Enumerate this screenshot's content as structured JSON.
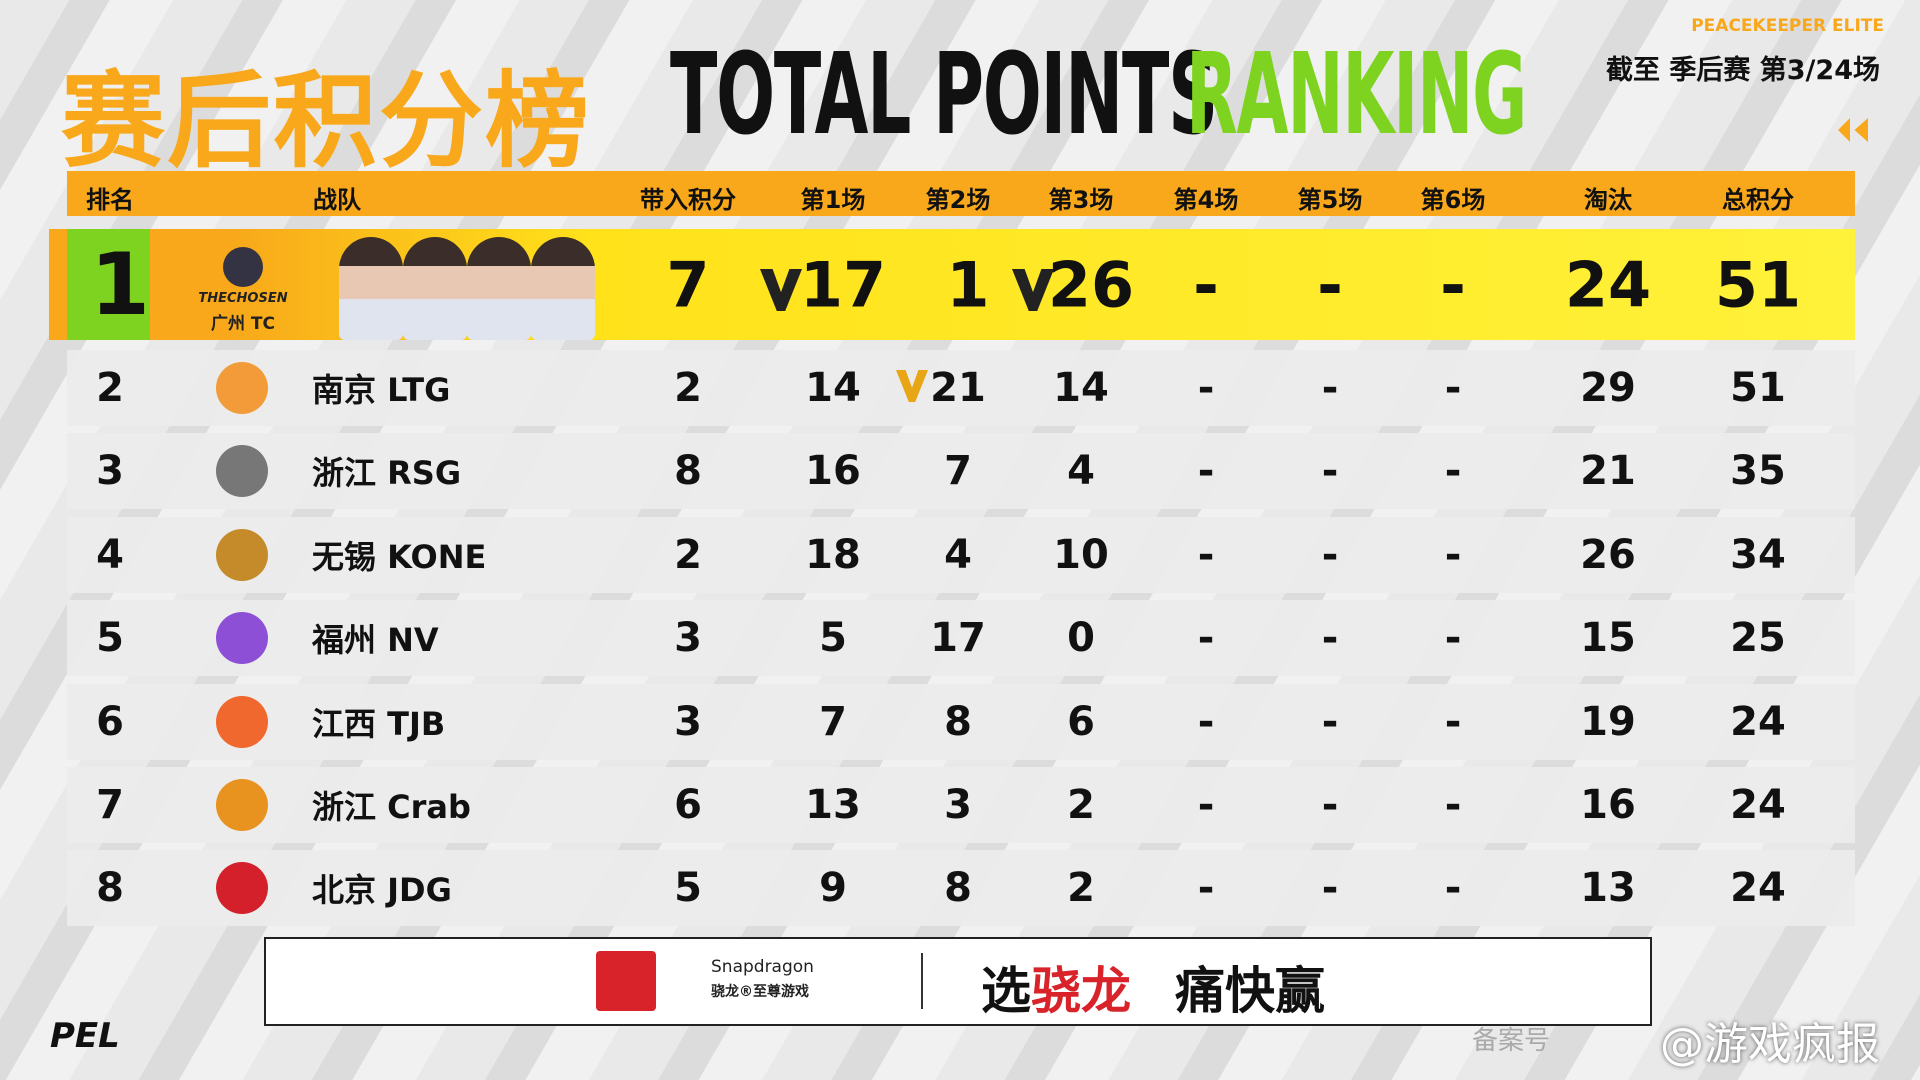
{
  "header": {
    "title_cn": "赛后积分榜",
    "title_en_1": "TOTAL POINTS",
    "title_en_2": "RANKING",
    "brand": "PEACEKEEPER ELITE",
    "status": "截至 季后赛 第3/24场"
  },
  "table": {
    "columns": [
      "排名",
      "战队",
      "带入积分",
      "第1场",
      "第2场",
      "第3场",
      "第4场",
      "第5场",
      "第6场",
      "淘汰",
      "总积分"
    ],
    "leader_logo_text": "THECHOSEN",
    "rows": [
      {
        "rank": 1,
        "team": "广州 TC",
        "carry": 7,
        "games": [
          17,
          1,
          26,
          "-",
          "-",
          "-"
        ],
        "elim": 24,
        "total": 51
      },
      {
        "rank": 2,
        "team": "南京 LTG",
        "carry": 2,
        "games": [
          14,
          21,
          14,
          "-",
          "-",
          "-"
        ],
        "elim": 29,
        "total": 51
      },
      {
        "rank": 3,
        "team": "浙江 RSG",
        "carry": 8,
        "games": [
          16,
          7,
          4,
          "-",
          "-",
          "-"
        ],
        "elim": 21,
        "total": 35
      },
      {
        "rank": 4,
        "team": "无锡 KONE",
        "carry": 2,
        "games": [
          18,
          4,
          10,
          "-",
          "-",
          "-"
        ],
        "elim": 26,
        "total": 34
      },
      {
        "rank": 5,
        "team": "福州 NV",
        "carry": 3,
        "games": [
          5,
          17,
          0,
          "-",
          "-",
          "-"
        ],
        "elim": 15,
        "total": 25
      },
      {
        "rank": 6,
        "team": "江西 TJB",
        "carry": 3,
        "games": [
          7,
          8,
          6,
          "-",
          "-",
          "-"
        ],
        "elim": 19,
        "total": 24
      },
      {
        "rank": 7,
        "team": "浙江 Crab",
        "carry": 6,
        "games": [
          13,
          3,
          2,
          "-",
          "-",
          "-"
        ],
        "elim": 16,
        "total": 24
      },
      {
        "rank": 8,
        "team": "北京 JDG",
        "carry": 5,
        "games": [
          9,
          8,
          2,
          "-",
          "-",
          "-"
        ],
        "elim": 13,
        "total": 24
      }
    ]
  },
  "sponsor": {
    "brand": "Snapdragon",
    "sub": "骁龙®至尊游戏",
    "slogan_1": "选",
    "slogan_2": "骁龙",
    "slogan_3": "痛快赢"
  },
  "footer": {
    "logo": "PEL",
    "record": "备案号",
    "watermark": "@游戏疯报"
  }
}
